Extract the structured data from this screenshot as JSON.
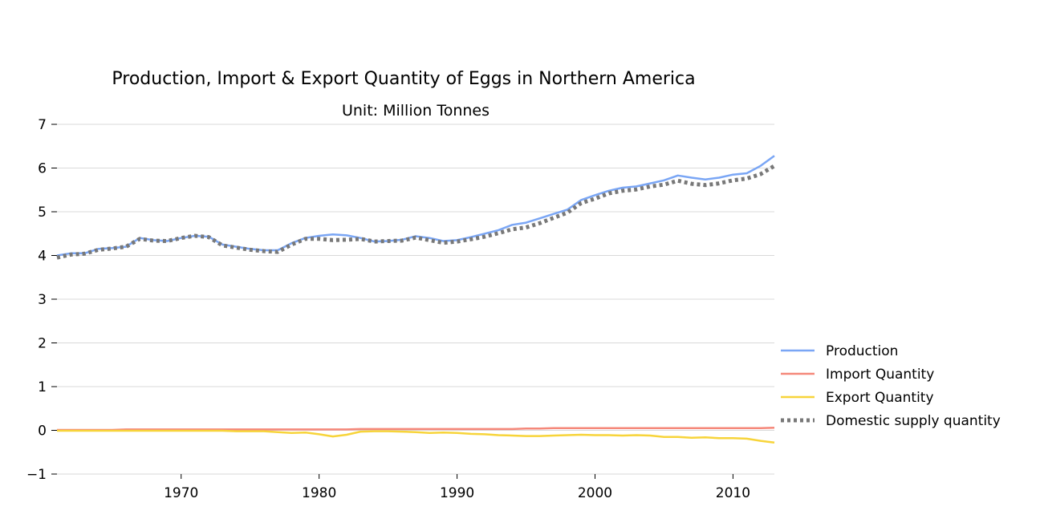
{
  "chart_data": {
    "type": "line",
    "title": "Production, Import & Export Quantity of Eggs in Northern America",
    "subtitle": "Unit: Million Tonnes",
    "xlabel": "",
    "ylabel": "",
    "xlim": [
      1961,
      2013
    ],
    "ylim": [
      -1,
      7
    ],
    "xticks": [
      1970,
      1980,
      1990,
      2000,
      2010
    ],
    "yticks": [
      -1,
      0,
      1,
      2,
      3,
      4,
      5,
      6,
      7
    ],
    "ytick_labels": [
      "−1",
      "0",
      "1",
      "2",
      "3",
      "4",
      "5",
      "6",
      "7"
    ],
    "grid": "horizontal",
    "legend_position": "right",
    "x": [
      1961,
      1962,
      1963,
      1964,
      1965,
      1966,
      1967,
      1968,
      1969,
      1970,
      1971,
      1972,
      1973,
      1974,
      1975,
      1976,
      1977,
      1978,
      1979,
      1980,
      1981,
      1982,
      1983,
      1984,
      1985,
      1986,
      1987,
      1988,
      1989,
      1990,
      1991,
      1992,
      1993,
      1994,
      1995,
      1996,
      1997,
      1998,
      1999,
      2000,
      2001,
      2002,
      2003,
      2004,
      2005,
      2006,
      2007,
      2008,
      2009,
      2010,
      2011,
      2012,
      2013
    ],
    "series": [
      {
        "name": "Production",
        "color": "#7aa6f5",
        "style": "solid",
        "values": [
          4.0,
          4.05,
          4.05,
          4.15,
          4.17,
          4.2,
          4.4,
          4.35,
          4.33,
          4.4,
          4.45,
          4.43,
          4.25,
          4.2,
          4.15,
          4.12,
          4.12,
          4.28,
          4.4,
          4.45,
          4.48,
          4.46,
          4.4,
          4.32,
          4.33,
          4.36,
          4.44,
          4.4,
          4.33,
          4.35,
          4.42,
          4.5,
          4.58,
          4.7,
          4.75,
          4.85,
          4.95,
          5.05,
          5.27,
          5.38,
          5.48,
          5.55,
          5.58,
          5.65,
          5.72,
          5.83,
          5.78,
          5.74,
          5.78,
          5.85,
          5.88,
          6.05,
          6.28
        ]
      },
      {
        "name": "Import Quantity",
        "color": "#f5887a",
        "style": "solid",
        "values": [
          0.01,
          0.01,
          0.01,
          0.01,
          0.01,
          0.02,
          0.02,
          0.02,
          0.02,
          0.02,
          0.02,
          0.02,
          0.02,
          0.02,
          0.02,
          0.02,
          0.02,
          0.02,
          0.02,
          0.02,
          0.02,
          0.02,
          0.03,
          0.03,
          0.03,
          0.03,
          0.03,
          0.03,
          0.03,
          0.03,
          0.03,
          0.03,
          0.03,
          0.03,
          0.04,
          0.04,
          0.05,
          0.05,
          0.05,
          0.05,
          0.05,
          0.05,
          0.05,
          0.05,
          0.05,
          0.05,
          0.05,
          0.05,
          0.05,
          0.05,
          0.05,
          0.05,
          0.06
        ]
      },
      {
        "name": "Export Quantity",
        "color": "#f7d43a",
        "style": "solid",
        "values": [
          -0.01,
          -0.01,
          -0.01,
          -0.01,
          -0.01,
          -0.01,
          -0.01,
          -0.01,
          -0.01,
          -0.01,
          -0.01,
          -0.01,
          -0.01,
          -0.02,
          -0.02,
          -0.02,
          -0.04,
          -0.06,
          -0.05,
          -0.09,
          -0.14,
          -0.1,
          -0.03,
          -0.02,
          -0.02,
          -0.03,
          -0.04,
          -0.06,
          -0.05,
          -0.06,
          -0.08,
          -0.09,
          -0.11,
          -0.12,
          -0.13,
          -0.13,
          -0.12,
          -0.11,
          -0.1,
          -0.11,
          -0.11,
          -0.12,
          -0.11,
          -0.12,
          -0.15,
          -0.15,
          -0.17,
          -0.16,
          -0.18,
          -0.18,
          -0.19,
          -0.24,
          -0.28
        ]
      },
      {
        "name": "Domestic supply quantity",
        "color": "#787878",
        "style": "dotted",
        "values": [
          3.95,
          4.02,
          4.04,
          4.13,
          4.16,
          4.2,
          4.38,
          4.34,
          4.33,
          4.4,
          4.45,
          4.42,
          4.23,
          4.18,
          4.13,
          4.1,
          4.08,
          4.25,
          4.38,
          4.38,
          4.35,
          4.36,
          4.38,
          4.32,
          4.33,
          4.34,
          4.41,
          4.35,
          4.29,
          4.32,
          4.37,
          4.43,
          4.51,
          4.6,
          4.64,
          4.74,
          4.86,
          4.98,
          5.2,
          5.3,
          5.42,
          5.48,
          5.51,
          5.58,
          5.62,
          5.71,
          5.64,
          5.61,
          5.65,
          5.72,
          5.76,
          5.86,
          6.05
        ]
      }
    ]
  }
}
